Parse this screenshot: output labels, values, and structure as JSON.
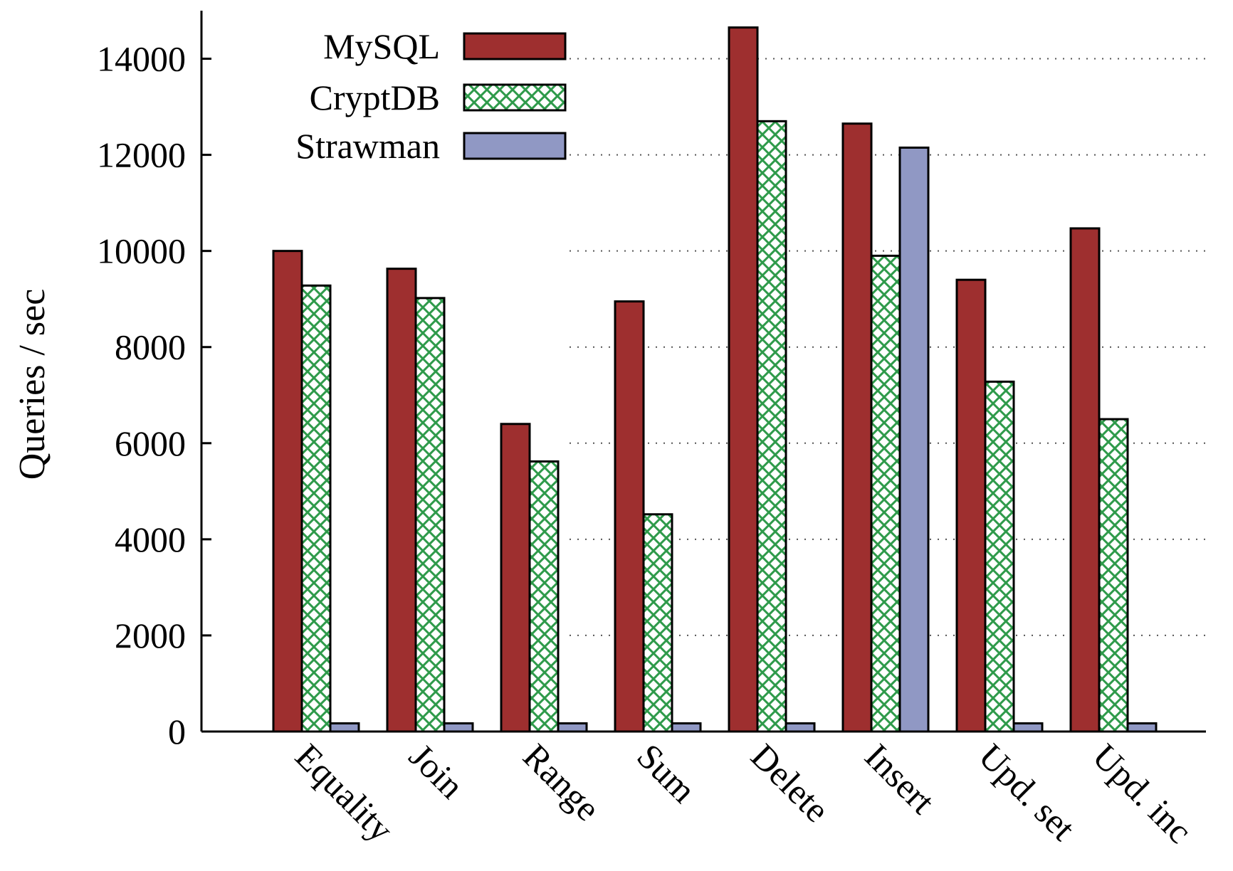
{
  "chart_data": {
    "type": "bar",
    "title": "",
    "xlabel": "",
    "ylabel": "Queries / sec",
    "ylim": [
      0,
      15000
    ],
    "yticks": [
      0,
      2000,
      4000,
      6000,
      8000,
      10000,
      12000,
      14000
    ],
    "grid": "horizontal dotted",
    "legend_position": "top-left",
    "categories": [
      "Equality",
      "Join",
      "Range",
      "Sum",
      "Delete",
      "Insert",
      "Upd. set",
      "Upd. inc"
    ],
    "series": [
      {
        "name": "MySQL",
        "color": "#9e2f2f",
        "pattern": "solid",
        "values": [
          10000,
          9630,
          6400,
          8950,
          14650,
          12650,
          9400,
          10470
        ]
      },
      {
        "name": "CryptDB",
        "color": "#2e9a4a",
        "pattern": "crosshatch",
        "values": [
          9280,
          9020,
          5620,
          4520,
          12700,
          9900,
          7280,
          6500
        ]
      },
      {
        "name": "Strawman",
        "color": "#9098c4",
        "pattern": "solid",
        "values": [
          170,
          170,
          170,
          170,
          170,
          12150,
          170,
          170
        ]
      }
    ]
  }
}
